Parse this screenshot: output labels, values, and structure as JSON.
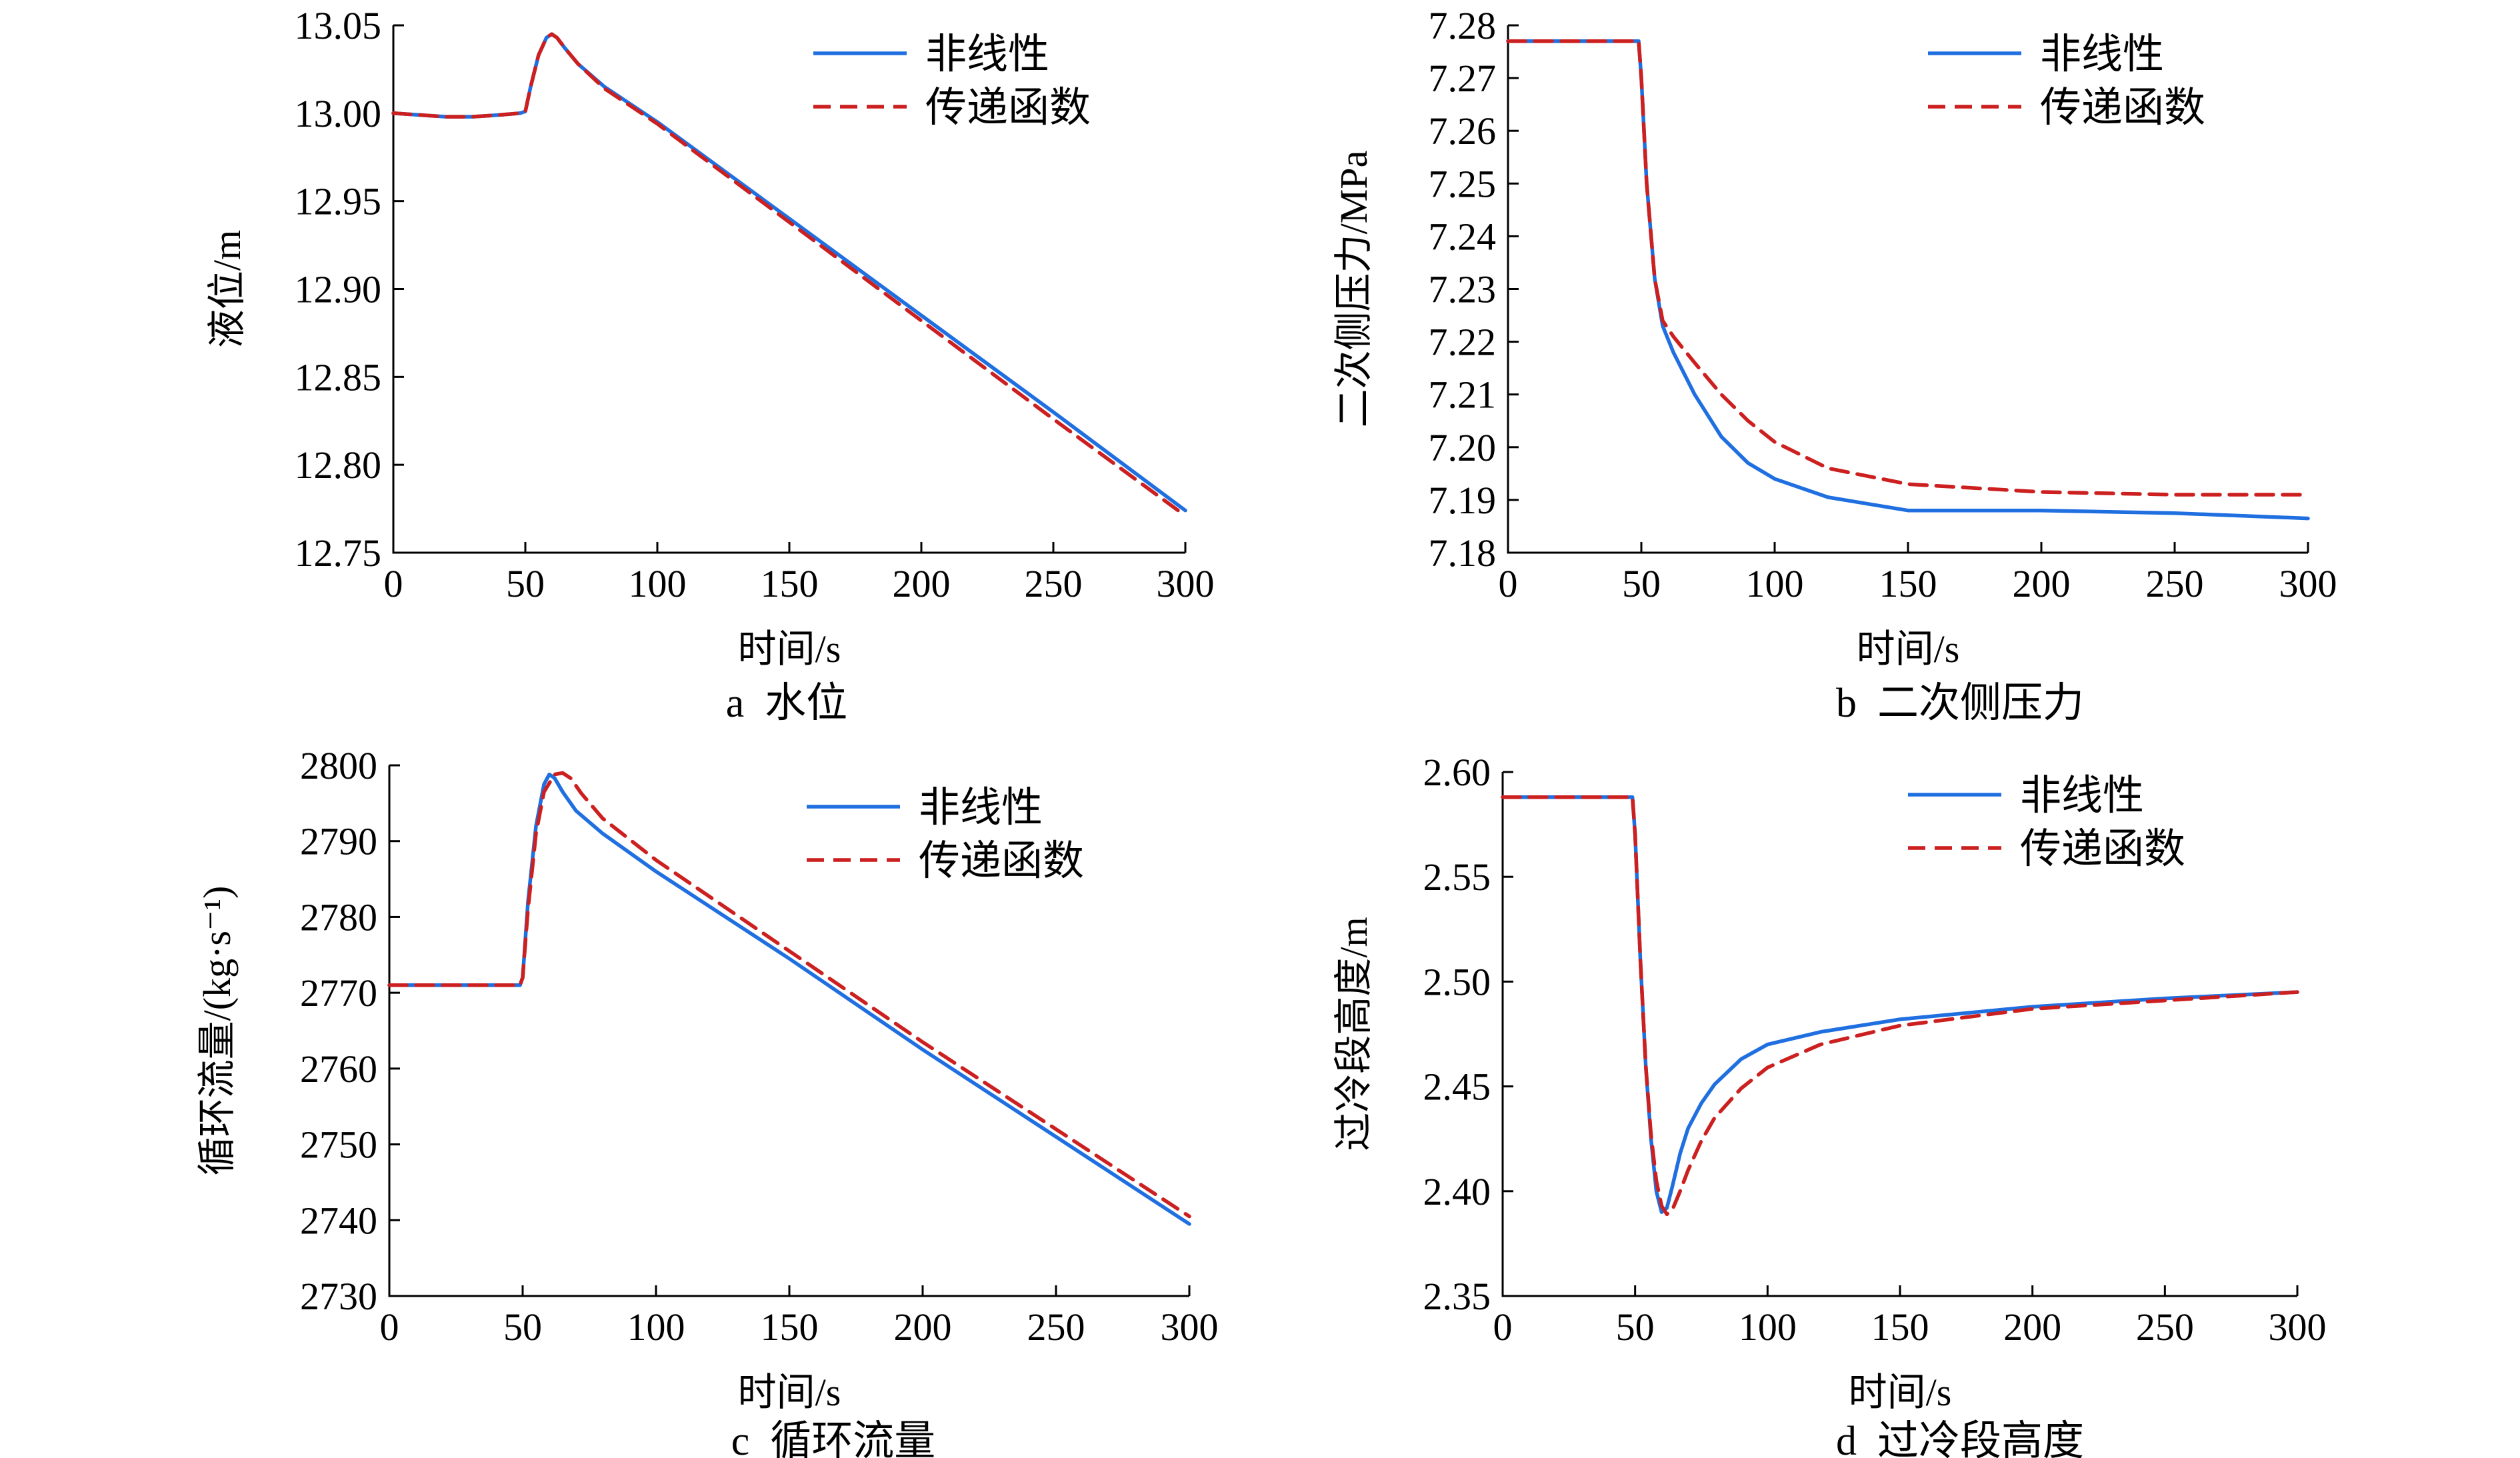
{
  "colors": {
    "nonlinear": "#1f6fe0",
    "transfer": "#cc1f1f"
  },
  "legend": {
    "nonlinear": "非线性",
    "transfer": "传递函数"
  },
  "chart_data": [
    {
      "type": "line",
      "id": "a",
      "caption_letter": "a",
      "caption_text": "水位",
      "xlabel": "时间/s",
      "ylabel": "液位/m",
      "xlim": [
        0,
        300
      ],
      "ylim": [
        12.75,
        13.05
      ],
      "xticks": [
        0,
        50,
        100,
        150,
        200,
        250,
        300
      ],
      "yticks": [
        12.75,
        12.8,
        12.85,
        12.9,
        12.95,
        13.0,
        13.05
      ],
      "ytick_labels": [
        "12.75",
        "12.80",
        "12.85",
        "12.90",
        "12.95",
        "13.00",
        "13.05"
      ],
      "legend_position": "top-right",
      "series": [
        {
          "name": "非线性",
          "style": "solid",
          "x": [
            0,
            10,
            20,
            30,
            40,
            48,
            50,
            52,
            55,
            58,
            60,
            62,
            65,
            70,
            80,
            100,
            150,
            200,
            250,
            300
          ],
          "y": [
            13.0,
            12.999,
            12.998,
            12.998,
            12.999,
            13.0,
            13.001,
            13.015,
            13.033,
            13.043,
            13.045,
            13.043,
            13.037,
            13.028,
            13.015,
            12.995,
            12.94,
            12.885,
            12.83,
            12.774
          ]
        },
        {
          "name": "传递函数",
          "style": "dashed",
          "x": [
            0,
            10,
            20,
            30,
            40,
            48,
            50,
            52,
            55,
            58,
            60,
            62,
            65,
            70,
            80,
            100,
            150,
            200,
            250,
            300
          ],
          "y": [
            13.0,
            12.999,
            12.998,
            12.998,
            12.999,
            13.0,
            13.001,
            13.015,
            13.033,
            13.043,
            13.045,
            13.043,
            13.037,
            13.028,
            13.014,
            12.994,
            12.938,
            12.882,
            12.826,
            12.771
          ]
        }
      ]
    },
    {
      "type": "line",
      "id": "b",
      "caption_letter": "b",
      "caption_text": "二次侧压力",
      "xlabel": "时间/s",
      "ylabel": "二次侧压力/MPa",
      "xlim": [
        0,
        300
      ],
      "ylim": [
        7.18,
        7.28
      ],
      "xticks": [
        0,
        50,
        100,
        150,
        200,
        250,
        300
      ],
      "yticks": [
        7.18,
        7.19,
        7.2,
        7.21,
        7.22,
        7.23,
        7.24,
        7.25,
        7.26,
        7.27,
        7.28
      ],
      "ytick_labels": [
        "7.18",
        "7.19",
        "7.20",
        "7.21",
        "7.22",
        "7.23",
        "7.24",
        "7.25",
        "7.26",
        "7.27",
        "7.28"
      ],
      "legend_position": "top-right",
      "series": [
        {
          "name": "非线性",
          "style": "solid",
          "x": [
            0,
            20,
            40,
            49,
            50,
            52,
            55,
            58,
            62,
            70,
            80,
            90,
            100,
            120,
            150,
            200,
            250,
            300
          ],
          "y": [
            7.277,
            7.277,
            7.277,
            7.277,
            7.27,
            7.25,
            7.232,
            7.223,
            7.218,
            7.21,
            7.202,
            7.197,
            7.194,
            7.1905,
            7.188,
            7.188,
            7.1875,
            7.1865
          ]
        },
        {
          "name": "传递函数",
          "style": "dashed",
          "x": [
            0,
            20,
            40,
            49,
            50,
            52,
            55,
            58,
            62,
            70,
            80,
            90,
            100,
            120,
            150,
            200,
            250,
            300
          ],
          "y": [
            7.277,
            7.277,
            7.277,
            7.277,
            7.27,
            7.25,
            7.232,
            7.224,
            7.221,
            7.216,
            7.21,
            7.205,
            7.201,
            7.196,
            7.193,
            7.1915,
            7.191,
            7.191
          ]
        }
      ]
    },
    {
      "type": "line",
      "id": "c",
      "caption_letter": "c",
      "caption_text": "循环流量",
      "xlabel": "时间/s",
      "ylabel": "循环流量/(kg·s⁻¹)",
      "xlim": [
        0,
        300
      ],
      "ylim": [
        2730,
        2800
      ],
      "xticks": [
        0,
        50,
        100,
        150,
        200,
        250,
        300
      ],
      "yticks": [
        2730,
        2740,
        2750,
        2760,
        2770,
        2780,
        2790,
        2800
      ],
      "ytick_labels": [
        "2730",
        "2740",
        "2750",
        "2760",
        "2770",
        "2780",
        "2790",
        "2800"
      ],
      "legend_position": "top-right",
      "series": [
        {
          "name": "非线性",
          "style": "solid",
          "x": [
            0,
            20,
            40,
            49,
            50,
            52,
            55,
            58,
            60,
            62,
            65,
            70,
            80,
            100,
            150,
            200,
            250,
            300
          ],
          "y": [
            2771,
            2771,
            2771,
            2771,
            2772,
            2782,
            2792,
            2797.5,
            2798.8,
            2798.3,
            2796.5,
            2794,
            2791,
            2786,
            2774.5,
            2762.5,
            2751,
            2739.5
          ]
        },
        {
          "name": "传递函数",
          "style": "dashed",
          "x": [
            0,
            20,
            40,
            49,
            50,
            52,
            55,
            58,
            62,
            65,
            68,
            72,
            80,
            100,
            150,
            200,
            250,
            300
          ],
          "y": [
            2771,
            2771,
            2771,
            2771,
            2772,
            2781,
            2791,
            2796.5,
            2798.8,
            2799,
            2798.3,
            2796.3,
            2793,
            2787.5,
            2775.5,
            2763.5,
            2752,
            2740.5
          ]
        }
      ]
    },
    {
      "type": "line",
      "id": "d",
      "caption_letter": "d",
      "caption_text": "过冷段高度",
      "xlabel": "时间/s",
      "ylabel": "过冷段高度/m",
      "xlim": [
        0,
        300
      ],
      "ylim": [
        2.35,
        2.6
      ],
      "xticks": [
        0,
        50,
        100,
        150,
        200,
        250,
        300
      ],
      "yticks": [
        2.35,
        2.4,
        2.45,
        2.5,
        2.55,
        2.6
      ],
      "ytick_labels": [
        "2.35",
        "2.40",
        "2.45",
        "2.50",
        "2.55",
        "2.60"
      ],
      "legend_position": "top-right",
      "series": [
        {
          "name": "非线性",
          "style": "solid",
          "x": [
            0,
            20,
            40,
            49,
            50,
            52,
            54,
            56,
            58,
            60,
            62,
            64,
            67,
            70,
            75,
            80,
            90,
            100,
            120,
            150,
            200,
            250,
            300
          ],
          "y": [
            2.588,
            2.588,
            2.588,
            2.588,
            2.57,
            2.51,
            2.46,
            2.425,
            2.4,
            2.39,
            2.392,
            2.402,
            2.418,
            2.43,
            2.442,
            2.451,
            2.463,
            2.47,
            2.476,
            2.482,
            2.488,
            2.492,
            2.495
          ]
        },
        {
          "name": "传递函数",
          "style": "dashed",
          "x": [
            0,
            20,
            40,
            49,
            50,
            52,
            54,
            56,
            58,
            60,
            62,
            64,
            67,
            70,
            75,
            80,
            90,
            100,
            120,
            150,
            200,
            250,
            300
          ],
          "y": [
            2.588,
            2.588,
            2.588,
            2.588,
            2.57,
            2.51,
            2.46,
            2.427,
            2.405,
            2.393,
            2.389,
            2.391,
            2.4,
            2.41,
            2.424,
            2.435,
            2.449,
            2.459,
            2.47,
            2.479,
            2.487,
            2.491,
            2.495
          ]
        }
      ]
    }
  ]
}
